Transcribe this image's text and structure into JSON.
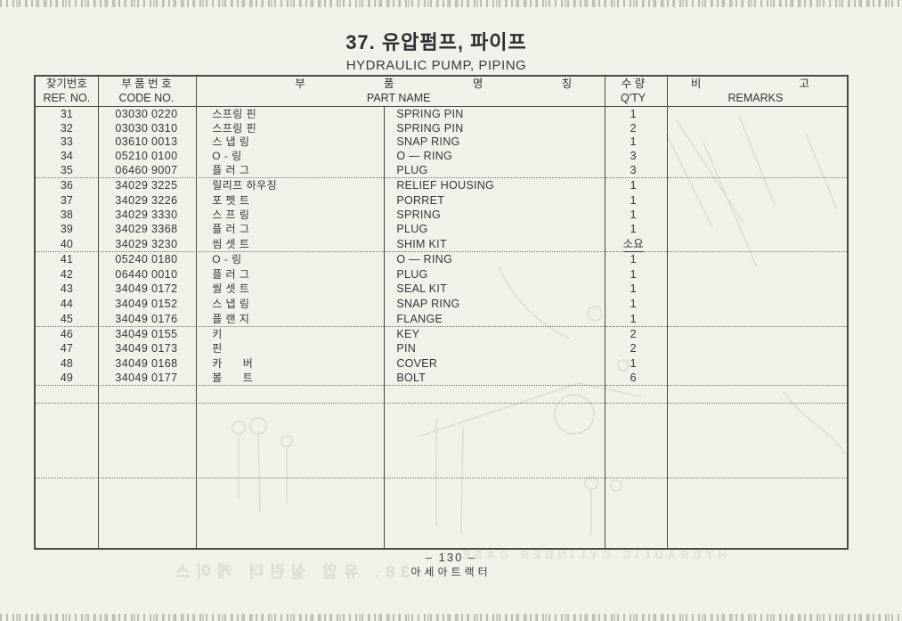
{
  "page": {
    "title_ko": "37. 유압펌프, 파이프",
    "title_en": "HYDRAULIC PUMP, PIPING",
    "page_number": "– 130 –",
    "publisher": "아세아트랙터"
  },
  "bleed_through": {
    "top_line": "HYDRAULIC CYLINDER CASE",
    "bottom_line": "38. 유압 실린더 케이스"
  },
  "colors": {
    "page_background": "#f1f1ea",
    "table_line": "#4a4a46",
    "text": "#35353a",
    "ghost": "#8d9884"
  },
  "table": {
    "headers": {
      "ref_ko": "찾기번호",
      "ref_en": "REF. NO.",
      "code_ko": "부 품 번 호",
      "code_en": "CODE NO.",
      "name_ko_1": "부",
      "name_ko_2": "품",
      "name_ko_3": "명",
      "name_ko_4": "칭",
      "name_en": "PART NAME",
      "qty_ko": "수 량",
      "qty_en": "Q'TY",
      "remarks_ko_1": "비",
      "remarks_ko_2": "고",
      "remarks_en": "REMARKS"
    },
    "groups": [
      {
        "rows": [
          {
            "ref": "31",
            "code": "03030 0220",
            "name_ko": "스프링 핀",
            "name_en": "SPRING PIN",
            "qty": "1",
            "remarks": ""
          },
          {
            "ref": "32",
            "code": "03030 0310",
            "name_ko": "스프링 핀",
            "name_en": "SPRING PIN",
            "qty": "2",
            "remarks": ""
          },
          {
            "ref": "33",
            "code": "03610 0013",
            "name_ko": "스 냅 링",
            "name_en": "SNAP RING",
            "qty": "1",
            "remarks": ""
          },
          {
            "ref": "34",
            "code": "05210 0100",
            "name_ko": "O - 링",
            "name_en": "O — RING",
            "qty": "3",
            "remarks": ""
          },
          {
            "ref": "35",
            "code": "06460 9007",
            "name_ko": "플 러 그",
            "name_en": "PLUG",
            "qty": "3",
            "remarks": ""
          }
        ]
      },
      {
        "rows": [
          {
            "ref": "36",
            "code": "34029 3225",
            "name_ko": "릴리프 하우징",
            "name_en": "RELIEF HOUSING",
            "qty": "1",
            "remarks": ""
          },
          {
            "ref": "37",
            "code": "34029 3226",
            "name_ko": "포 펫 트",
            "name_en": "PORRET",
            "qty": "1",
            "remarks": ""
          },
          {
            "ref": "38",
            "code": "34029 3330",
            "name_ko": "스 프 링",
            "name_en": "SPRING",
            "qty": "1",
            "remarks": ""
          },
          {
            "ref": "39",
            "code": "34029 3368",
            "name_ko": "플 러 그",
            "name_en": "PLUG",
            "qty": "1",
            "remarks": ""
          },
          {
            "ref": "40",
            "code": "34029 3230",
            "name_ko": "씸 셋 트",
            "name_en": "SHIM KIT",
            "qty": "소요",
            "qty_underlined": true,
            "remarks": ""
          }
        ]
      },
      {
        "rows": [
          {
            "ref": "41",
            "code": "05240 0180",
            "name_ko": "O - 링",
            "name_en": "O — RING",
            "qty": "1",
            "remarks": ""
          },
          {
            "ref": "42",
            "code": "06440 0010",
            "name_ko": "플 러 그",
            "name_en": "PLUG",
            "qty": "1",
            "remarks": ""
          },
          {
            "ref": "43",
            "code": "34049 0172",
            "name_ko": "씰 셋 트",
            "name_en": "SEAL KIT",
            "qty": "1",
            "remarks": ""
          },
          {
            "ref": "44",
            "code": "34049 0152",
            "name_ko": "스 냅 링",
            "name_en": "SNAP RING",
            "qty": "1",
            "remarks": ""
          },
          {
            "ref": "45",
            "code": "34049 0176",
            "name_ko": "플 랜 지",
            "name_en": "FLANGE",
            "qty": "1",
            "remarks": ""
          }
        ]
      },
      {
        "rows": [
          {
            "ref": "46",
            "code": "34049 0155",
            "name_ko": "키",
            "name_en": "KEY",
            "qty": "2",
            "remarks": ""
          },
          {
            "ref": "47",
            "code": "34049 0173",
            "name_ko": "핀",
            "name_en": "PIN",
            "qty": "2",
            "remarks": ""
          },
          {
            "ref": "48",
            "code": "34049 0168",
            "name_ko": "카      버",
            "name_en": "COVER",
            "qty": "1",
            "remarks": ""
          },
          {
            "ref": "49",
            "code": "34049 0177",
            "name_ko": "볼      트",
            "name_en": "BOLT",
            "qty": "6",
            "remarks": ""
          }
        ]
      }
    ]
  }
}
